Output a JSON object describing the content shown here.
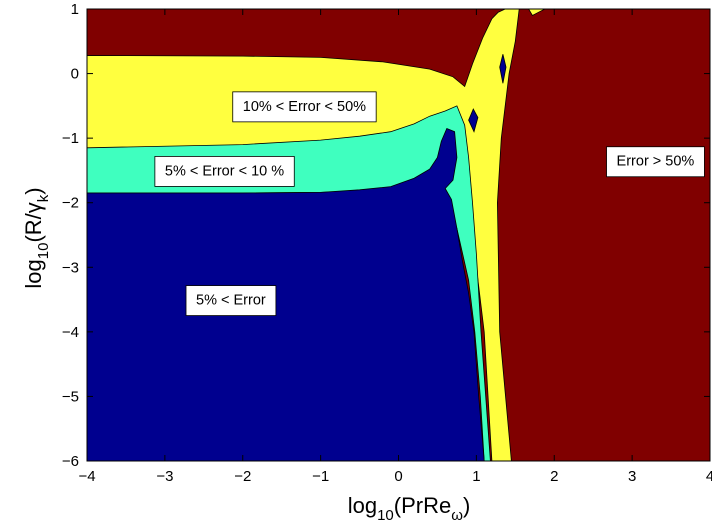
{
  "chart_data": {
    "type": "heatmap",
    "subtype": "filled contour map",
    "title": "",
    "xlabel": {
      "base": "log",
      "sub1": "10",
      "mid": "(PrRe",
      "sub2": "ω",
      "end": ")"
    },
    "ylabel": {
      "base": "log",
      "sub1": "10",
      "mid": "(R/γ",
      "sub2": "k",
      "end": ")"
    },
    "xlim": [
      -4,
      4
    ],
    "ylim": [
      -6,
      1
    ],
    "xticks": [
      "−4",
      "−3",
      "−2",
      "−1",
      "0",
      "1",
      "2",
      "3",
      "4"
    ],
    "yticks": [
      "−6",
      "−5",
      "−4",
      "−3",
      "−2",
      "−1",
      "0",
      "1"
    ],
    "xtick_values": [
      -4,
      -3,
      -2,
      -1,
      0,
      1,
      2,
      3,
      4
    ],
    "ytick_values": [
      -6,
      -5,
      -4,
      -3,
      -2,
      -1,
      0,
      1
    ],
    "grid": false,
    "colors": {
      "error_lt_5": "#00008f",
      "error_5_10": "#3fffbf",
      "error_10_50": "#ffff3f",
      "error_gt_50": "#800000"
    },
    "regions": [
      {
        "label": "5% < Error",
        "level": "error_lt_5",
        "x": -2.6,
        "y": -3.5
      },
      {
        "label": "5% < Error < 10 %",
        "level": "error_5_10",
        "x": -3.0,
        "y": -1.5
      },
      {
        "label": "10% < Error < 50%",
        "level": "error_10_50",
        "x": -2.0,
        "y": -0.5
      },
      {
        "label": "Error > 50%",
        "level": "error_gt_50",
        "x": 2.8,
        "y": -1.35
      }
    ],
    "boundaries": {
      "error_gt_50_lower": [
        [
          -4,
          0.28
        ],
        [
          -2,
          0.27
        ],
        [
          -1,
          0.25
        ],
        [
          -0.2,
          0.18
        ],
        [
          0.5,
          0.05
        ],
        [
          0.8,
          -0.15
        ]
      ],
      "error_10_50_lower": [
        [
          -4,
          -1.15
        ],
        [
          -2,
          -1.1
        ],
        [
          -1,
          -1.03
        ],
        [
          -0.2,
          -0.9
        ],
        [
          0.4,
          -0.65
        ],
        [
          0.8,
          -0.55
        ]
      ],
      "error_5_10_lower": [
        [
          -4,
          -1.85
        ],
        [
          -2,
          -1.85
        ],
        [
          -1,
          -1.84
        ],
        [
          -0.3,
          -1.78
        ],
        [
          0.3,
          -1.6
        ],
        [
          0.7,
          -1.3
        ]
      ],
      "error_gt_50_left": [
        [
          1.45,
          -6
        ],
        [
          1.3,
          -4
        ],
        [
          1.25,
          -2
        ],
        [
          1.3,
          -1
        ],
        [
          1.42,
          0
        ],
        [
          1.5,
          0.5
        ],
        [
          1.55,
          1
        ]
      ],
      "error_lt_5_right": [
        [
          1.18,
          -6
        ],
        [
          1.1,
          -4
        ],
        [
          1.05,
          -2.5
        ],
        [
          0.9,
          -1.6
        ]
      ]
    }
  }
}
